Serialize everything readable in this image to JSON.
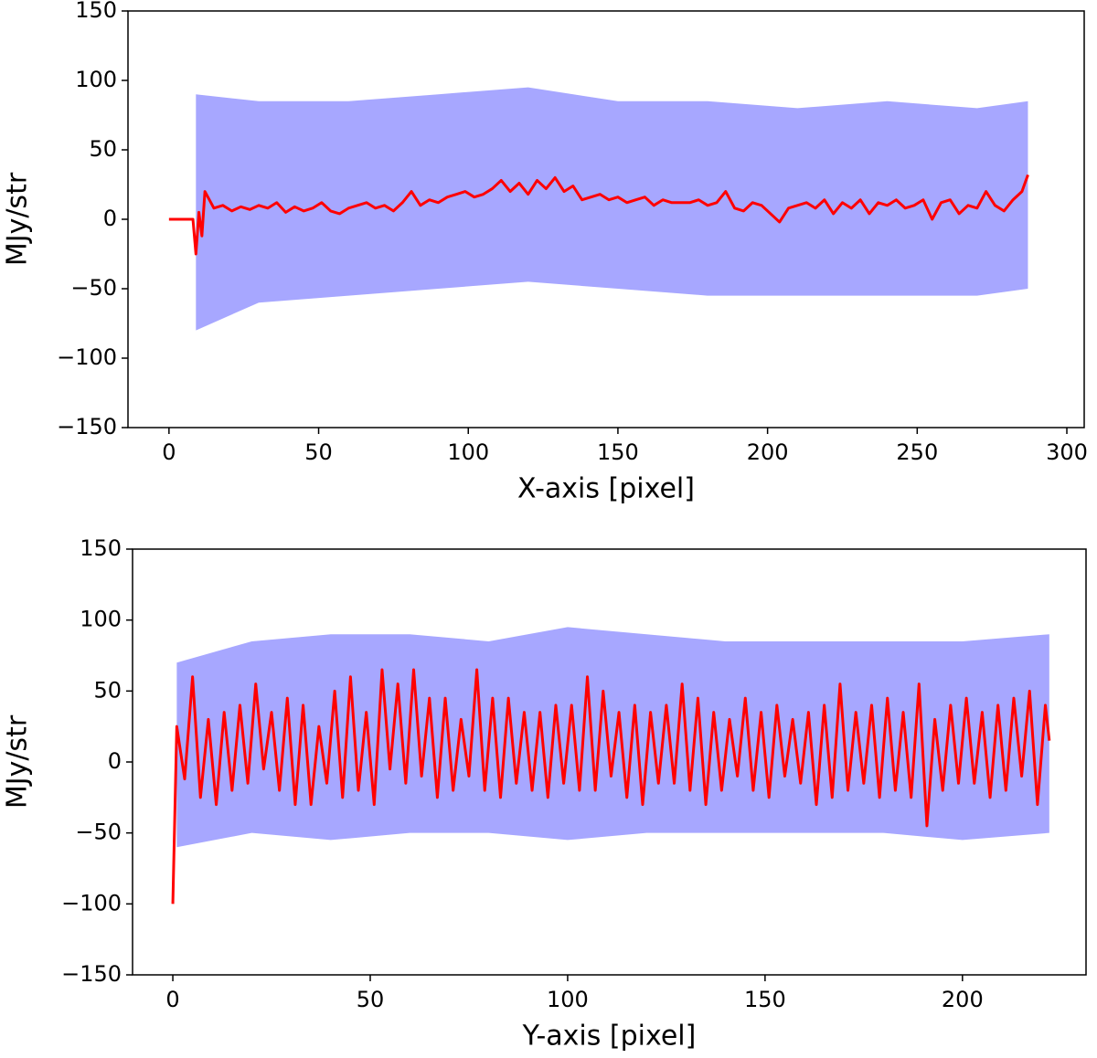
{
  "chart_data": [
    {
      "type": "line",
      "xlabel": "X-axis [pixel]",
      "ylabel": "MJy/str",
      "xlim": [
        -13.7,
        305.8
      ],
      "ylim": [
        -150,
        150
      ],
      "xticks": [
        0,
        50,
        100,
        150,
        200,
        250,
        300
      ],
      "yticks": [
        {
          "value": -150,
          "label": "−150"
        },
        {
          "value": -100,
          "label": "−100"
        },
        {
          "value": -50,
          "label": "−50"
        },
        0,
        50,
        100,
        150
      ],
      "bands": [
        {
          "color": "#3b3bff",
          "x": [
            9,
            30,
            60,
            90,
            120,
            150,
            180,
            210,
            240,
            270,
            287
          ],
          "upper": [
            90,
            85,
            85,
            90,
            95,
            85,
            85,
            80,
            85,
            80,
            85
          ],
          "lower": [
            -80,
            -60,
            -55,
            -50,
            -45,
            -50,
            -55,
            -55,
            -55,
            -55,
            -50
          ]
        }
      ],
      "x": [
        0,
        8,
        9,
        10,
        11,
        12,
        15,
        18,
        21,
        24,
        27,
        30,
        33,
        36,
        39,
        42,
        45,
        48,
        51,
        54,
        57,
        60,
        63,
        66,
        69,
        72,
        75,
        78,
        81,
        84,
        87,
        90,
        93,
        96,
        99,
        102,
        105,
        108,
        111,
        114,
        117,
        120,
        123,
        126,
        129,
        132,
        135,
        138,
        141,
        144,
        147,
        150,
        153,
        156,
        159,
        162,
        165,
        168,
        171,
        174,
        177,
        180,
        183,
        186,
        189,
        192,
        195,
        198,
        201,
        204,
        207,
        210,
        213,
        216,
        219,
        222,
        225,
        228,
        231,
        234,
        237,
        240,
        243,
        246,
        249,
        252,
        255,
        258,
        261,
        264,
        267,
        270,
        273,
        276,
        279,
        282,
        285,
        287
      ],
      "series": [
        {
          "color": "#ff0000",
          "values": [
            0,
            0,
            -25,
            5,
            -12,
            20,
            8,
            10,
            6,
            9,
            7,
            10,
            8,
            12,
            5,
            9,
            6,
            8,
            12,
            6,
            4,
            8,
            10,
            12,
            8,
            10,
            6,
            12,
            20,
            10,
            14,
            12,
            16,
            18,
            20,
            16,
            18,
            22,
            28,
            20,
            26,
            18,
            28,
            22,
            30,
            20,
            24,
            14,
            16,
            18,
            14,
            16,
            12,
            14,
            16,
            10,
            14,
            12,
            12,
            12,
            14,
            10,
            12,
            20,
            8,
            6,
            12,
            10,
            4,
            -2,
            8,
            10,
            12,
            8,
            14,
            4,
            12,
            8,
            14,
            4,
            12,
            10,
            14,
            8,
            10,
            14,
            0,
            12,
            14,
            4,
            10,
            8,
            20,
            10,
            6,
            14,
            20,
            32
          ]
        }
      ]
    },
    {
      "type": "line",
      "xlabel": "Y-axis [pixel]",
      "ylabel": "MJy/str",
      "xlim": [
        -10.2,
        231.3
      ],
      "ylim": [
        -150,
        150
      ],
      "xticks": [
        0,
        50,
        100,
        150,
        200
      ],
      "yticks": [
        {
          "value": -150,
          "label": "−150"
        },
        {
          "value": -100,
          "label": "−100"
        },
        {
          "value": -50,
          "label": "−50"
        },
        0,
        50,
        100,
        150
      ],
      "bands": [
        {
          "color": "#3b3bff",
          "x": [
            1,
            20,
            40,
            60,
            80,
            100,
            120,
            140,
            160,
            180,
            200,
            222
          ],
          "upper": [
            70,
            85,
            90,
            90,
            85,
            95,
            90,
            85,
            85,
            85,
            85,
            90
          ],
          "lower": [
            -60,
            -50,
            -55,
            -50,
            -50,
            -55,
            -50,
            -50,
            -50,
            -50,
            -55,
            -50
          ]
        }
      ],
      "x": [
        0,
        1,
        3,
        5,
        7,
        9,
        11,
        13,
        15,
        17,
        19,
        21,
        23,
        25,
        27,
        29,
        31,
        33,
        35,
        37,
        39,
        41,
        43,
        45,
        47,
        49,
        51,
        53,
        55,
        57,
        59,
        61,
        63,
        65,
        67,
        69,
        71,
        73,
        75,
        77,
        79,
        81,
        83,
        85,
        87,
        89,
        91,
        93,
        95,
        97,
        99,
        101,
        103,
        105,
        107,
        109,
        111,
        113,
        115,
        117,
        119,
        121,
        123,
        125,
        127,
        129,
        131,
        133,
        135,
        137,
        139,
        141,
        143,
        145,
        147,
        149,
        151,
        153,
        155,
        157,
        159,
        161,
        163,
        165,
        167,
        169,
        171,
        173,
        175,
        177,
        179,
        181,
        183,
        185,
        187,
        189,
        191,
        193,
        195,
        197,
        199,
        201,
        203,
        205,
        207,
        209,
        211,
        213,
        215,
        217,
        219,
        221,
        222
      ],
      "series": [
        {
          "color": "#ff0000",
          "values": [
            -100,
            25,
            -12,
            60,
            -25,
            30,
            -30,
            35,
            -20,
            40,
            -15,
            55,
            -5,
            35,
            -20,
            45,
            -30,
            40,
            -30,
            25,
            -15,
            50,
            -25,
            60,
            -20,
            35,
            -30,
            65,
            -5,
            55,
            -15,
            65,
            -10,
            45,
            -25,
            45,
            -20,
            30,
            -10,
            65,
            -20,
            45,
            -25,
            45,
            -15,
            35,
            -20,
            35,
            -25,
            40,
            -15,
            40,
            -20,
            60,
            -20,
            50,
            -10,
            35,
            -25,
            40,
            -30,
            35,
            -15,
            40,
            -15,
            55,
            -20,
            45,
            -30,
            35,
            -20,
            30,
            -10,
            45,
            -20,
            35,
            -25,
            40,
            -10,
            30,
            -15,
            35,
            -30,
            40,
            -25,
            55,
            -20,
            35,
            -15,
            40,
            -25,
            45,
            -20,
            35,
            -25,
            55,
            -45,
            30,
            -20,
            40,
            -15,
            45,
            -15,
            35,
            -25,
            40,
            -20,
            45,
            -10,
            50,
            -30,
            40,
            15
          ]
        }
      ]
    }
  ]
}
